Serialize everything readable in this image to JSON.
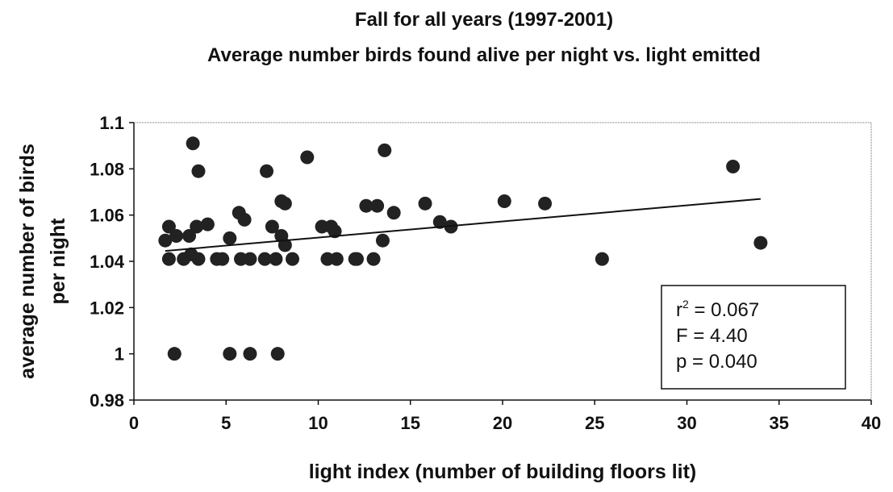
{
  "chart_data": {
    "type": "scatter",
    "title": [
      "Fall  for all years (1997-2001)",
      "Average number birds found alive per night vs. light emitted"
    ],
    "xlabel": "light index (number of building floors lit)",
    "ylabel": [
      "average number of birds",
      "per night"
    ],
    "xlim": [
      0,
      40
    ],
    "xticks": [
      0,
      5,
      10,
      15,
      20,
      25,
      30,
      35,
      40
    ],
    "ylim": [
      0.98,
      1.1
    ],
    "yticks": [
      0.98,
      1,
      1.02,
      1.04,
      1.06,
      1.08,
      1.1
    ],
    "color": "#222222",
    "x": [
      1.7,
      1.9,
      1.9,
      2.3,
      2.2,
      2.7,
      3.0,
      3.2,
      3.4,
      3.5,
      3.1,
      3.5,
      4.0,
      4.5,
      4.8,
      5.2,
      5.2,
      5.7,
      6.0,
      5.8,
      6.3,
      6.3,
      7.2,
      7.1,
      7.5,
      7.7,
      7.8,
      8.0,
      8.0,
      8.2,
      8.2,
      8.6,
      9.4,
      10.2,
      10.5,
      10.7,
      10.9,
      11.0,
      12.0,
      12.1,
      12.6,
      13.0,
      13.2,
      13.5,
      13.6,
      14.1,
      15.8,
      16.6,
      17.2,
      20.1,
      22.3,
      25.4,
      32.5,
      34.0
    ],
    "values": [
      1.049,
      1.055,
      1.041,
      1.051,
      1.0,
      1.041,
      1.051,
      1.091,
      1.055,
      1.079,
      1.043,
      1.041,
      1.056,
      1.041,
      1.041,
      1.05,
      1.0,
      1.061,
      1.058,
      1.041,
      1.041,
      1.0,
      1.079,
      1.041,
      1.055,
      1.041,
      1.0,
      1.051,
      1.066,
      1.065,
      1.047,
      1.041,
      1.085,
      1.055,
      1.041,
      1.055,
      1.053,
      1.041,
      1.041,
      1.041,
      1.064,
      1.041,
      1.064,
      1.049,
      1.088,
      1.061,
      1.065,
      1.057,
      1.055,
      1.066,
      1.065,
      1.041,
      1.081,
      1.048
    ],
    "trendline": {
      "x": [
        1.7,
        34.0
      ],
      "y": [
        1.0445,
        1.067
      ]
    },
    "annotation": {
      "r_base": "r",
      "r_sup": "2",
      "r_rest": " = 0.067",
      "f": "F = 4.40",
      "p": "p = 0.040"
    }
  }
}
